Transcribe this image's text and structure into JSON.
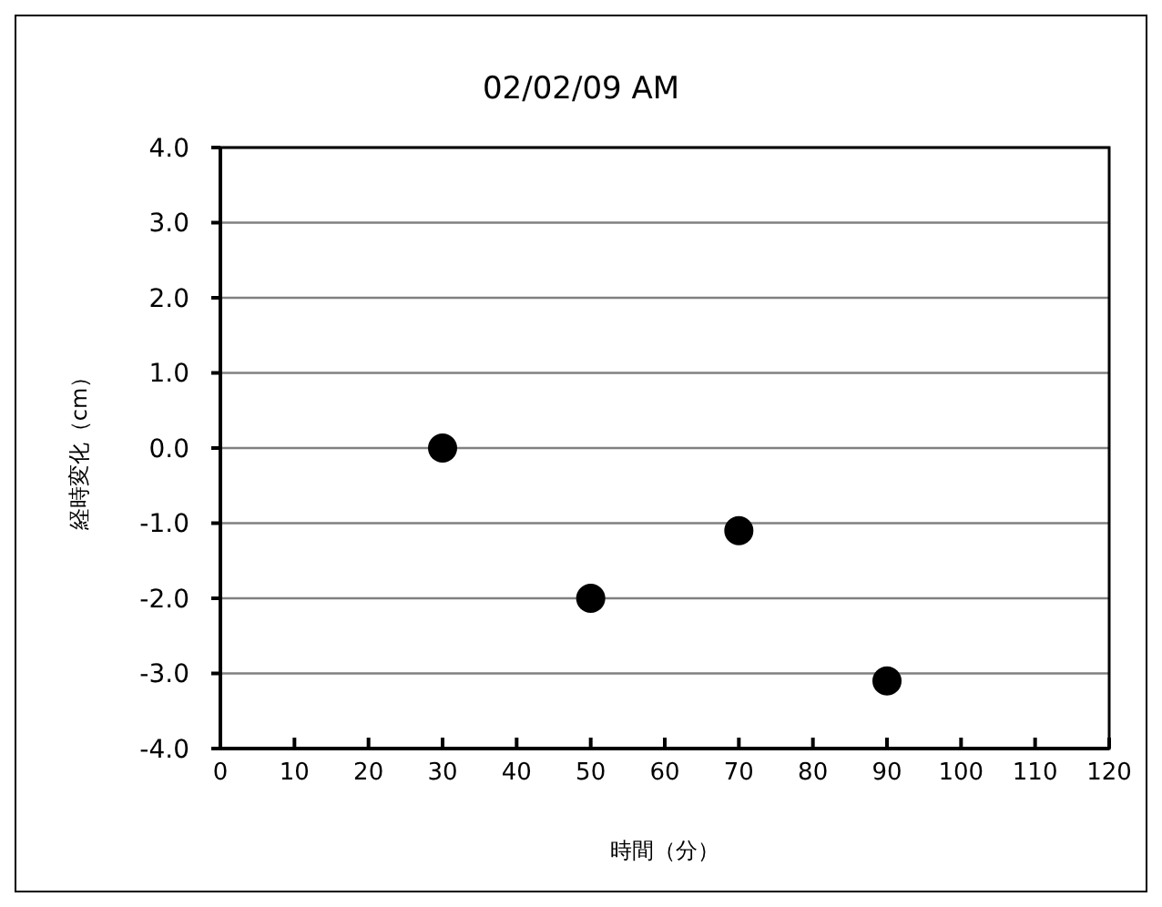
{
  "chart_data": {
    "type": "scatter",
    "title": "02/02/09 AM",
    "xlabel": "時間（分）",
    "ylabel": "経時変化（cm）",
    "x": [
      30,
      50,
      70,
      90
    ],
    "series": [
      {
        "color": "#000000",
        "values": [
          0,
          -2,
          -1.1,
          -3.1
        ]
      }
    ],
    "xlim": [
      0,
      120
    ],
    "xticks": [
      0,
      10,
      20,
      30,
      40,
      50,
      60,
      70,
      80,
      90,
      100,
      110,
      120
    ],
    "ylim": [
      -4,
      4
    ],
    "yticks": [
      {
        "value": -4,
        "label": "-4.0"
      },
      {
        "value": -3,
        "label": "-3.0"
      },
      {
        "value": -2,
        "label": "-2.0"
      },
      {
        "value": -1,
        "label": "-1.0"
      },
      {
        "value": 0,
        "label": "0.0"
      },
      {
        "value": 1,
        "label": "1.0"
      },
      {
        "value": 2,
        "label": "2.0"
      },
      {
        "value": 3,
        "label": "3.0"
      },
      {
        "value": 4,
        "label": "4.0"
      }
    ],
    "grid": "y",
    "marker": "circle",
    "legend": false
  }
}
